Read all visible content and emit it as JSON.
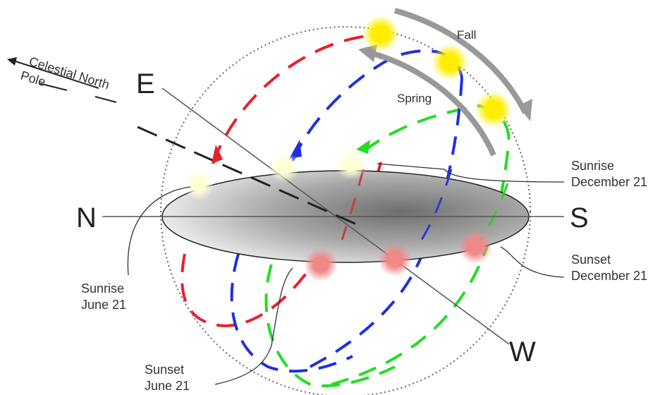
{
  "directions": {
    "north": "N",
    "south": "S",
    "east": "E",
    "west": "W"
  },
  "pole": {
    "line1": "Celestial North",
    "line2": "Pole"
  },
  "seasons": {
    "fall": "Fall",
    "spring": "Spring"
  },
  "labels": {
    "sunrise_dec_1": "Sunrise",
    "sunrise_dec_2": "December 21",
    "sunset_dec_1": "Sunset",
    "sunset_dec_2": "December 21",
    "sunrise_jun_1": "Sunrise",
    "sunrise_jun_2": "June 21",
    "sunset_jun_1": "Sunset",
    "sunset_jun_2": "June 21"
  },
  "colors": {
    "june_path": "#e8202a",
    "equinox_path": "#1f2fe0",
    "december_path": "#22dd22",
    "noon_sun": "#ffee00",
    "sunrise_sun": "#ffffcc",
    "sunset_sun": "#f08a8a",
    "arrow": "#999999",
    "horizon_dark": "#707070",
    "horizon_light": "#ffffff"
  }
}
